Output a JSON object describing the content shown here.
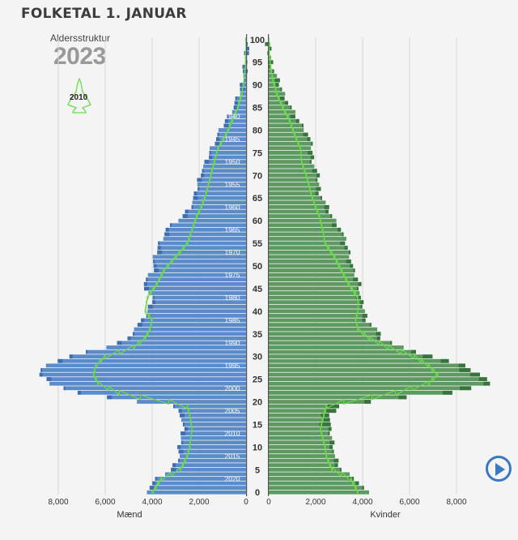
{
  "header": {
    "title": "FOLKETAL 1. JANUAR",
    "subtitle": "Aldersstruktur",
    "year": "2023",
    "legend_year": "2010"
  },
  "controls": {
    "play_icon": "play-icon"
  },
  "colors": {
    "male": "#5b8bc9",
    "male_dark": "#3e6eb0",
    "female": "#5e9962",
    "female_dark": "#37753c",
    "outline": "#66dd44",
    "text": "#3c3c3c"
  },
  "chart_data": {
    "type": "bar",
    "orientation": "horizontal-pyramid",
    "title": "FOLKETAL 1. JANUAR",
    "male_label": "Mænd",
    "female_label": "Kvinder",
    "x_ticks": [
      "8,000",
      "6,000",
      "4,000",
      "2,000",
      "0"
    ],
    "x_ticks_female": [
      "0",
      "2,000",
      "4,000",
      "6,000",
      "8,000"
    ],
    "age_ticks": [
      "0",
      "5",
      "10",
      "15",
      "20",
      "25",
      "30",
      "35",
      "40",
      "45",
      "50",
      "55",
      "60",
      "65",
      "70",
      "75",
      "80",
      "85",
      "90",
      "95",
      "100"
    ],
    "birth_year_ticks": [
      "2020",
      "2015",
      "2010",
      "2005",
      "2000",
      "1995",
      "1990",
      "1985",
      "1980",
      "1975",
      "1970",
      "1965",
      "1960",
      "1955",
      "1950",
      "1945",
      "1940"
    ],
    "xlim": [
      0,
      9000
    ],
    "age_keys": [
      0,
      3,
      5,
      8,
      10,
      14,
      17,
      19,
      20,
      21,
      22,
      24,
      26,
      28,
      30,
      32,
      34,
      36,
      38,
      40,
      43,
      46,
      49,
      52,
      55,
      58,
      61,
      63,
      66,
      70,
      73,
      76,
      79,
      82,
      85,
      88,
      91,
      94,
      97,
      100
    ],
    "male_2023": [
      4300,
      3800,
      3200,
      2850,
      2850,
      2700,
      2750,
      3100,
      4600,
      6000,
      7200,
      8300,
      8800,
      8600,
      7500,
      6000,
      5000,
      4800,
      4400,
      4200,
      4000,
      4400,
      4000,
      3900,
      3700,
      3400,
      2700,
      2400,
      2150,
      2000,
      1700,
      1500,
      1200,
      900,
      550,
      300,
      170,
      80,
      30,
      5
    ],
    "male_2010": [
      4000,
      3600,
      2800,
      2500,
      2400,
      2300,
      2400,
      2500,
      3300,
      4500,
      5400,
      6300,
      6500,
      6400,
      6000,
      4800,
      4300,
      4100,
      4000,
      4300,
      4200,
      3800,
      3500,
      3000,
      2500,
      2300,
      2100,
      1900,
      1700,
      1500,
      1350,
      1200,
      850,
      600,
      350,
      180,
      90,
      35,
      10,
      3
    ],
    "female_2023": [
      4200,
      3700,
      3100,
      2800,
      2800,
      2600,
      2650,
      3000,
      4400,
      5800,
      7800,
      9500,
      9000,
      8300,
      7000,
      5700,
      4800,
      4600,
      4200,
      4100,
      3900,
      3900,
      3600,
      3500,
      3300,
      3100,
      2700,
      2500,
      2200,
      2100,
      1900,
      1850,
      1700,
      1300,
      950,
      650,
      400,
      180,
      60,
      5
    ],
    "female_2010": [
      3800,
      3500,
      2700,
      2450,
      2400,
      2200,
      2350,
      2450,
      3200,
      4400,
      5400,
      6800,
      7200,
      6800,
      6200,
      5100,
      4300,
      3800,
      3700,
      3800,
      3800,
      3400,
      3100,
      2800,
      2400,
      2300,
      2150,
      2000,
      1800,
      1600,
      1400,
      1350,
      1100,
      900,
      600,
      350,
      180,
      80,
      25,
      5
    ]
  }
}
